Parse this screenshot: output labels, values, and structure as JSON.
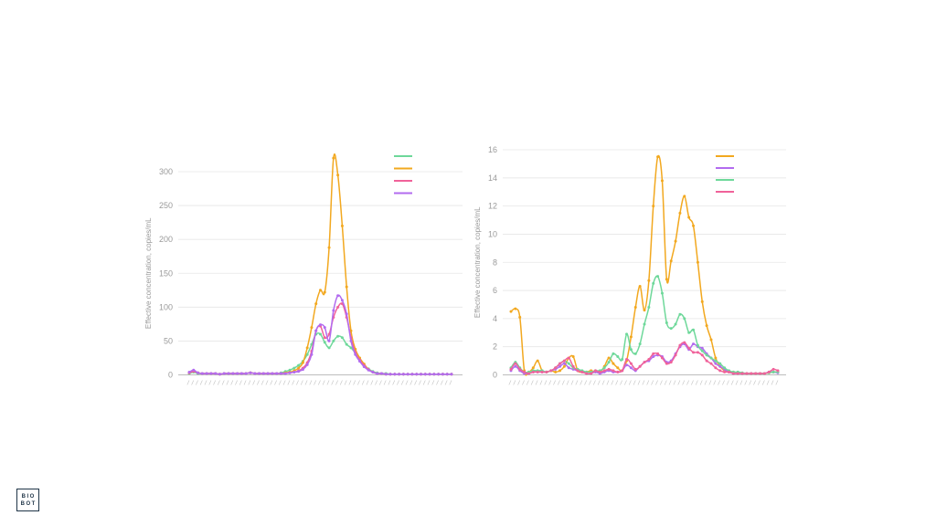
{
  "chart_data": [
    {
      "type": "line",
      "ylabel": "Effective concentration, copies/mL",
      "ylim": [
        0,
        300
      ],
      "yticks": [
        0,
        50,
        100,
        150,
        200,
        250,
        300
      ],
      "grid": true,
      "legend": "top-right",
      "x_count": 61,
      "series": [
        {
          "color": "#6ED89A",
          "values": [
            2,
            4,
            2,
            2,
            2,
            2,
            2,
            1,
            2,
            2,
            2,
            2,
            2,
            2,
            3,
            2,
            2,
            2,
            2,
            2,
            2,
            3,
            5,
            7,
            10,
            14,
            20,
            30,
            45,
            60,
            60,
            48,
            40,
            50,
            57,
            55,
            45,
            40,
            32,
            22,
            14,
            9,
            5,
            3,
            2,
            2,
            1,
            1,
            1,
            1,
            1,
            1,
            1,
            1,
            1,
            1,
            1,
            1,
            1,
            1,
            1
          ]
        },
        {
          "color": "#F2A81F",
          "values": [
            3,
            6,
            3,
            2,
            2,
            2,
            2,
            1,
            2,
            2,
            2,
            2,
            2,
            2,
            3,
            2,
            2,
            2,
            2,
            2,
            2,
            2,
            3,
            4,
            6,
            10,
            18,
            40,
            70,
            105,
            125,
            122,
            188,
            320,
            295,
            220,
            130,
            65,
            38,
            25,
            16,
            8,
            4,
            2,
            2,
            1,
            1,
            1,
            1,
            1,
            1,
            1,
            1,
            1,
            1,
            1,
            1,
            1,
            1,
            1,
            1
          ]
        },
        {
          "color": "#F0629A",
          "values": [
            3,
            5,
            3,
            2,
            2,
            2,
            2,
            1,
            2,
            2,
            2,
            2,
            2,
            2,
            3,
            2,
            2,
            2,
            2,
            2,
            2,
            2,
            2,
            3,
            4,
            6,
            10,
            18,
            35,
            65,
            72,
            55,
            60,
            85,
            100,
            105,
            85,
            55,
            33,
            22,
            14,
            8,
            4,
            2,
            2,
            1,
            1,
            1,
            1,
            1,
            1,
            1,
            1,
            1,
            1,
            1,
            1,
            1,
            1,
            1,
            1
          ]
        },
        {
          "color": "#B26BEF",
          "values": [
            4,
            7,
            3,
            2,
            2,
            2,
            2,
            1,
            2,
            2,
            2,
            2,
            2,
            2,
            3,
            2,
            2,
            2,
            2,
            2,
            2,
            2,
            2,
            3,
            4,
            5,
            8,
            15,
            30,
            65,
            74,
            70,
            50,
            95,
            117,
            110,
            90,
            50,
            30,
            20,
            12,
            7,
            4,
            2,
            2,
            1,
            1,
            1,
            1,
            1,
            1,
            1,
            1,
            1,
            1,
            1,
            1,
            1,
            1,
            1,
            1
          ]
        }
      ]
    },
    {
      "type": "line",
      "ylabel": "Effective concentration, copies/mL",
      "ylim": [
        0,
        16
      ],
      "yticks": [
        0,
        2,
        4,
        6,
        8,
        10,
        12,
        14,
        16
      ],
      "grid": true,
      "legend": "top-right",
      "x_count": 61,
      "series": [
        {
          "color": "#F2A81F",
          "values": [
            4.5,
            4.7,
            4.1,
            0.3,
            0.2,
            0.5,
            1.0,
            0.3,
            0.2,
            0.3,
            0.2,
            0.3,
            0.6,
            1.2,
            1.3,
            0.3,
            0.2,
            0.2,
            0.3,
            0.2,
            0.2,
            0.6,
            1.2,
            0.8,
            0.5,
            0.3,
            1.0,
            2.7,
            4.8,
            6.3,
            4.6,
            6.7,
            12.0,
            15.5,
            13.8,
            6.8,
            8.1,
            9.5,
            11.5,
            12.7,
            11.2,
            10.6,
            8.0,
            5.2,
            3.5,
            2.5,
            1.2,
            0.6,
            0.3,
            0.2,
            0.2,
            0.15,
            0.1,
            0.1,
            0.1,
            0.1,
            0.1,
            0.1,
            0.15,
            0.2,
            0.2
          ]
        },
        {
          "color": "#B26BEF",
          "values": [
            0.3,
            0.6,
            0.3,
            0.1,
            0.1,
            0.2,
            0.2,
            0.2,
            0.2,
            0.3,
            0.4,
            0.6,
            0.8,
            0.5,
            0.4,
            0.3,
            0.2,
            0.1,
            0.1,
            0.2,
            0.1,
            0.2,
            0.3,
            0.2,
            0.2,
            0.3,
            0.7,
            0.5,
            0.3,
            0.6,
            0.9,
            1.0,
            1.3,
            1.4,
            1.3,
            0.9,
            1.0,
            1.5,
            2.0,
            2.2,
            1.8,
            2.2,
            2.0,
            1.9,
            1.5,
            1.2,
            0.8,
            0.6,
            0.4,
            0.2,
            0.1,
            0.1,
            0.1,
            0.1,
            0.1,
            0.1,
            0.1,
            0.1,
            0.2,
            0.2,
            0.15
          ]
        },
        {
          "color": "#6ED89A",
          "values": [
            0.5,
            0.9,
            0.5,
            0.2,
            0.2,
            0.3,
            0.3,
            0.3,
            0.2,
            0.3,
            0.5,
            0.8,
            1.0,
            0.8,
            0.5,
            0.4,
            0.3,
            0.2,
            0.2,
            0.3,
            0.3,
            0.5,
            0.9,
            1.5,
            1.3,
            1.1,
            2.9,
            1.8,
            1.5,
            2.2,
            3.6,
            4.8,
            6.5,
            7.0,
            5.8,
            3.7,
            3.3,
            3.6,
            4.3,
            4.0,
            3.0,
            3.2,
            2.1,
            1.7,
            1.4,
            1.2,
            1.0,
            0.8,
            0.5,
            0.3,
            0.2,
            0.2,
            0.15,
            0.1,
            0.1,
            0.1,
            0.1,
            0.1,
            0.15,
            0.2,
            0.2
          ]
        },
        {
          "color": "#F0629A",
          "values": [
            0.4,
            0.8,
            0.4,
            0.2,
            0.1,
            0.2,
            0.2,
            0.2,
            0.2,
            0.3,
            0.5,
            0.8,
            1.0,
            1.2,
            0.6,
            0.3,
            0.2,
            0.1,
            0.1,
            0.3,
            0.2,
            0.3,
            0.4,
            0.3,
            0.2,
            0.3,
            1.1,
            0.8,
            0.4,
            0.6,
            0.9,
            1.1,
            1.5,
            1.5,
            1.2,
            0.8,
            0.9,
            1.4,
            2.1,
            2.3,
            1.9,
            1.6,
            1.6,
            1.4,
            1.0,
            0.8,
            0.5,
            0.3,
            0.2,
            0.2,
            0.1,
            0.1,
            0.1,
            0.1,
            0.1,
            0.1,
            0.1,
            0.1,
            0.2,
            0.4,
            0.3
          ]
        }
      ]
    }
  ],
  "logo": {
    "line1": "BIO",
    "line2": "BOT"
  }
}
